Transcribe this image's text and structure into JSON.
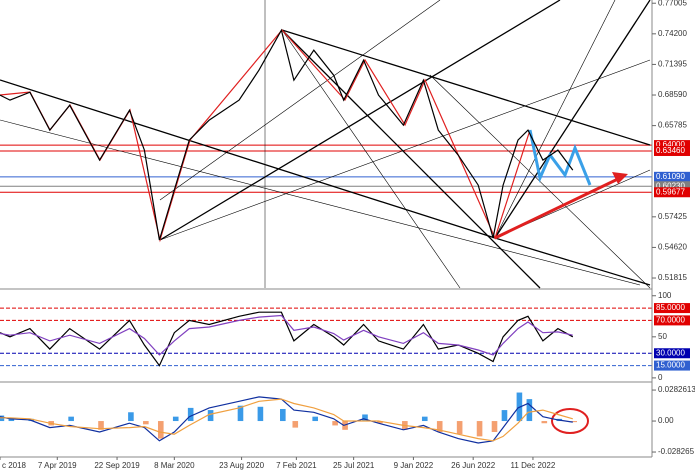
{
  "chart_data": [
    {
      "type": "line",
      "x": [
        0,
        4,
        12,
        20,
        28,
        40,
        52,
        58,
        64,
        70,
        76,
        84,
        96,
        104,
        113,
        118,
        126,
        134,
        138,
        146,
        152,
        162,
        170,
        176,
        184,
        192,
        198,
        202,
        208,
        212,
        218,
        224,
        230
      ],
      "series": [
        {
          "color": "#000000",
          "values": [
            0.6858,
            0.6812,
            0.6885,
            0.6537,
            0.6766,
            0.6262,
            0.672,
            0.6354,
            0.553,
            0.5988,
            0.6446,
            0.6629,
            0.6812,
            0.7087,
            0.7453,
            0.6995,
            0.727,
            0.7041,
            0.6812,
            0.7178,
            0.6858,
            0.6583,
            0.6995,
            0.6537,
            0.6308,
            0.6033,
            0.5548,
            0.6033,
            0.6446,
            0.6537,
            0.6262,
            0.6354,
            0.6171
          ]
        }
      ],
      "xlim": [
        0,
        261
      ],
      "xticks": [
        {
          "value": 0,
          "label": "c 2018"
        },
        {
          "value": 23,
          "label": "7 Apr 2019"
        },
        {
          "value": 47,
          "label": "22 Sep 2019"
        },
        {
          "value": 70,
          "label": "8 Mar 2020"
        },
        {
          "value": 97,
          "label": "23 Aug 2020"
        },
        {
          "value": 119,
          "label": "7 Feb 2021"
        },
        {
          "value": 142,
          "label": "25 Jul 2021"
        },
        {
          "value": 166,
          "label": "9 Jan 2022"
        },
        {
          "value": 190,
          "label": "26 Jun 2022"
        },
        {
          "value": 214,
          "label": "11 Dec 2022"
        }
      ],
      "ylim": [
        0.509,
        0.773
      ],
      "yticks": [
        0.77005,
        {
          "value": 0.742,
          "label": "0.74200"
        },
        0.71395,
        {
          "value": 0.6859,
          "label": "0.68590"
        },
        0.65785,
        0.57425,
        {
          "value": 0.5462,
          "label": "0.54620"
        },
        0.51815
      ],
      "levels": [
        {
          "value": 0.64,
          "label": "0.64000",
          "color": "#e00000"
        },
        {
          "value": 0.6346,
          "label": "0.63460",
          "color": "#e00000"
        },
        {
          "value": 0.6109,
          "label": "0.61090",
          "color": "#3060d0"
        },
        {
          "value": 0.6023,
          "label": "0.60230",
          "color": "#808080"
        },
        {
          "value": 0.59677,
          "label": "0.59677",
          "color": "#e00000"
        }
      ]
    },
    {
      "type": "line",
      "x": [
        0,
        4,
        12,
        20,
        28,
        40,
        52,
        58,
        64,
        70,
        76,
        84,
        96,
        104,
        113,
        118,
        126,
        134,
        138,
        146,
        152,
        162,
        170,
        176,
        184,
        192,
        198,
        202,
        208,
        212,
        218,
        224,
        230
      ],
      "series": [
        {
          "color": "#000000",
          "values": [
            55,
            50,
            60,
            35,
            60,
            35,
            70,
            40,
            15,
            55,
            70,
            65,
            75,
            80,
            80,
            45,
            65,
            50,
            40,
            65,
            45,
            35,
            65,
            35,
            40,
            30,
            20,
            50,
            70,
            75,
            45,
            60,
            50
          ]
        },
        {
          "color": "#8040c0",
          "values": [
            54,
            52,
            55,
            45,
            52,
            42,
            60,
            48,
            28,
            45,
            60,
            62,
            70,
            74,
            76,
            58,
            62,
            54,
            46,
            58,
            50,
            42,
            55,
            42,
            40,
            34,
            28,
            42,
            60,
            68,
            55,
            56,
            52
          ]
        }
      ],
      "xlim": [
        0,
        261
      ],
      "ylim": [
        -5,
        107
      ],
      "yticks": [
        100,
        50,
        0
      ],
      "levels": [
        {
          "value": 85,
          "label": "85.0000",
          "color": "#e00000"
        },
        {
          "value": 70,
          "label": "70.0000",
          "color": "#e00000"
        },
        {
          "value": 30,
          "label": "30.0000",
          "color": "#0000b0"
        },
        {
          "value": 15,
          "label": "15.0000",
          "color": "#3060d0"
        }
      ]
    },
    {
      "type": "bar",
      "x": [
        0,
        4,
        12,
        20,
        28,
        40,
        52,
        58,
        64,
        70,
        76,
        84,
        96,
        104,
        113,
        118,
        126,
        134,
        138,
        146,
        152,
        162,
        170,
        176,
        184,
        192,
        198,
        202,
        208,
        212,
        218,
        224,
        230
      ],
      "values": [
        0.005,
        0.003,
        0.002,
        -0.004,
        0.004,
        -0.008,
        0.008,
        -0.003,
        -0.016,
        0.004,
        0.012,
        0.01,
        0.014,
        0.013,
        0.011,
        -0.006,
        0.004,
        -0.004,
        -0.008,
        0.006,
        -0.002,
        -0.008,
        0.004,
        -0.01,
        -0.012,
        -0.014,
        -0.01,
        0.01,
        0.026,
        0.02,
        -0.002,
        0.002,
        -0.001
      ],
      "series": [
        {
          "color": "#1030a0",
          "values": [
            0.004,
            0.002,
            0.001,
            -0.006,
            -0.004,
            -0.01,
            -0.002,
            -0.006,
            -0.018,
            -0.01,
            0.004,
            0.012,
            0.018,
            0.022,
            0.02,
            0.01,
            0.008,
            0.002,
            -0.004,
            0.002,
            -0.002,
            -0.008,
            -0.004,
            -0.01,
            -0.016,
            -0.02,
            -0.018,
            -0.006,
            0.012,
            0.016,
            0.004,
            0.001,
            -0.001
          ]
        },
        {
          "color": "#f0a040",
          "values": [
            0.003,
            0.003,
            0.002,
            -0.002,
            -0.005,
            -0.007,
            -0.006,
            -0.005,
            -0.01,
            -0.012,
            -0.004,
            0.006,
            0.012,
            0.018,
            0.02,
            0.016,
            0.012,
            0.006,
            0.0,
            0.0,
            0.0,
            -0.004,
            -0.006,
            -0.008,
            -0.012,
            -0.016,
            -0.018,
            -0.014,
            -0.002,
            0.008,
            0.01,
            0.006,
            0.002
          ]
        }
      ],
      "bar_colors": [
        "#3a9ae8",
        "#f4a070"
      ],
      "xlim": [
        0,
        261
      ],
      "ylim": [
        -0.0328,
        0.0347
      ],
      "yticks": [
        0.0282613,
        {
          "value": 0,
          "label": "0.00"
        },
        -0.028265
      ]
    }
  ]
}
